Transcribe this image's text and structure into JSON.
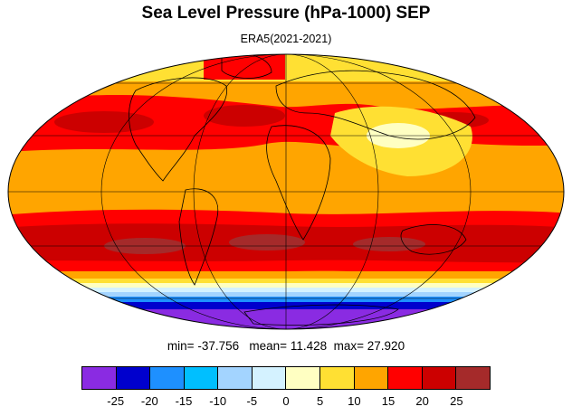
{
  "title": "Sea Level Pressure (hPa-1000) SEP",
  "subtitle": "ERA5(2021-2021)",
  "stats": {
    "min_label": "min=",
    "min": "-37.756",
    "mean_label": "mean=",
    "mean": "11.428",
    "max_label": "max=",
    "max": "27.920"
  },
  "map": {
    "projection": "mollweide",
    "variable": "sea level pressure anomaly (hPa-1000)",
    "month": "SEP",
    "features": [
      "coastlines",
      "graticule"
    ]
  },
  "colorbar": {
    "colors": [
      "#8a2be2",
      "#0000cd",
      "#1e90ff",
      "#00bfff",
      "#a3d4ff",
      "#d4f2ff",
      "#ffffc2",
      "#ffe033",
      "#ffa500",
      "#ff0000",
      "#cc0000",
      "#a52a2a"
    ],
    "tick_labels": [
      "-25",
      "-20",
      "-15",
      "-10",
      "-5",
      "0",
      "5",
      "10",
      "15",
      "20",
      "25"
    ]
  }
}
